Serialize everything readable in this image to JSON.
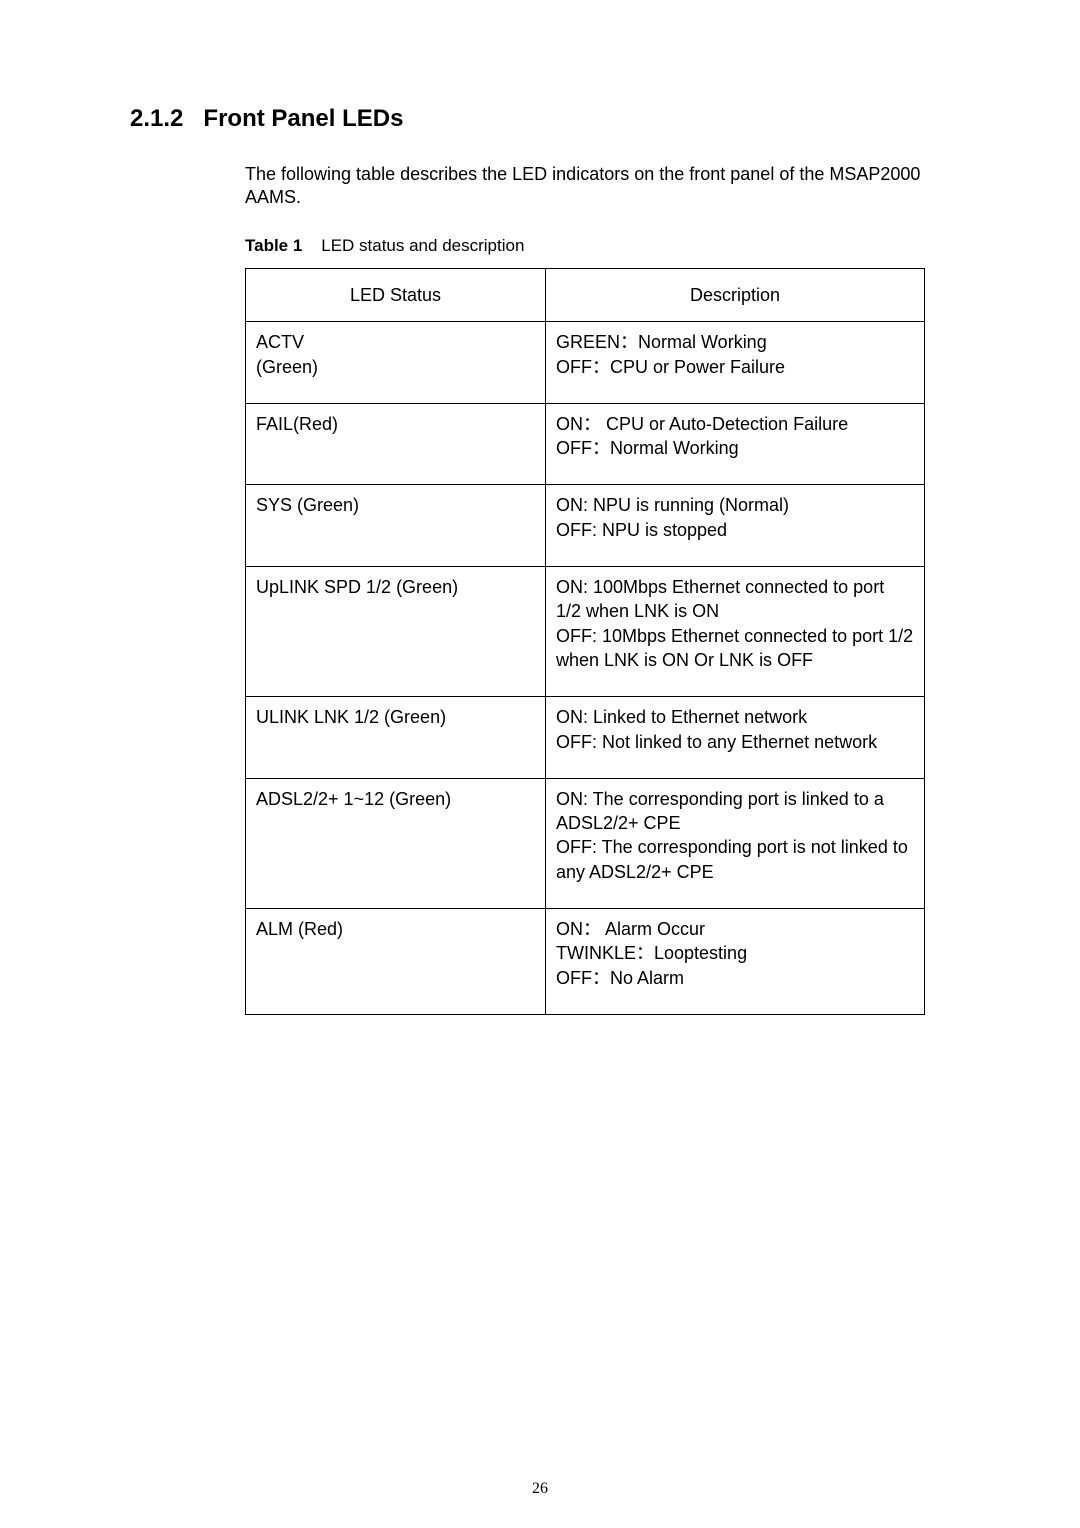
{
  "section": {
    "number": "2.1.2",
    "title": "Front Panel LEDs",
    "intro": "The following table describes the LED indicators on the front panel of the MSAP2000 AAMS."
  },
  "tableCaption": {
    "label": "Table 1",
    "text": "LED status and description"
  },
  "table": {
    "headers": [
      "LED Status",
      "Description"
    ],
    "rows": [
      {
        "status": "ACTV\n(Green)",
        "desc": "GREEN：Normal Working\nOFF：CPU or Power Failure"
      },
      {
        "status": "FAIL(Red)",
        "desc": "ON： CPU or Auto-Detection Failure\nOFF：Normal Working"
      },
      {
        "status": "SYS (Green)",
        "desc": "ON: NPU is running (Normal)\nOFF: NPU is stopped"
      },
      {
        "status": "UpLINK SPD 1/2 (Green)",
        "desc": "ON: 100Mbps Ethernet connected to port 1/2 when LNK is ON\nOFF: 10Mbps Ethernet connected to port 1/2 when LNK is ON Or LNK is OFF"
      },
      {
        "status": "ULINK LNK 1/2 (Green)",
        "desc": "ON: Linked to Ethernet network\nOFF: Not linked to any Ethernet network"
      },
      {
        "status": "ADSL2/2+ 1~12 (Green)",
        "desc": "ON: The corresponding port is linked to a ADSL2/2+ CPE\nOFF: The corresponding port is not linked to any ADSL2/2+ CPE"
      },
      {
        "status": "ALM (Red)",
        "desc": "ON： Alarm Occur\nTWINKLE：Looptesting\nOFF：No Alarm"
      }
    ]
  },
  "pageNumber": "26"
}
